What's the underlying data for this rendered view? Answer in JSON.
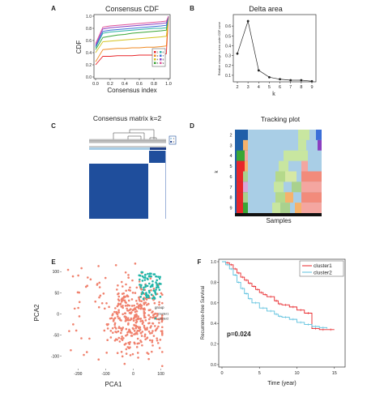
{
  "panels": {
    "a": {
      "letter": "A",
      "title": "Consensus CDF",
      "xlabel": "Consensus index",
      "ylabel": "CDF",
      "xticks": [
        "0.0",
        "0.2",
        "0.4",
        "0.6",
        "0.8",
        "1.0"
      ],
      "yticks": [
        "0.0",
        "0.2",
        "0.4",
        "0.6",
        "0.8",
        "1.0"
      ],
      "legend_labels": [
        "2",
        "3",
        "4",
        "5",
        "6",
        "7",
        "8",
        "9"
      ]
    },
    "b": {
      "letter": "B",
      "title": "Delta area",
      "xlabel": "k",
      "ylabel": "Relative change in area under CDF curve",
      "xticks": [
        "2",
        "3",
        "4",
        "5",
        "6",
        "7",
        "8",
        "9"
      ],
      "yticks": [
        "0.1",
        "0.2",
        "0.3",
        "0.4",
        "0.5",
        "0.6"
      ]
    },
    "c": {
      "letter": "C",
      "title": "Consensus matrix k=2",
      "legend_labels": [
        "1",
        "2"
      ]
    },
    "d": {
      "letter": "D",
      "title": "Tracking plot",
      "xlabel": "Samples",
      "ylabel": "k",
      "yticks": [
        "2",
        "3",
        "4",
        "5",
        "6",
        "7",
        "8",
        "9"
      ]
    },
    "e": {
      "letter": "E",
      "xlabel": "PCA1",
      "ylabel": "PCA2",
      "xticks": [
        "-200",
        "-100",
        "0",
        "100"
      ],
      "yticks": [
        "100",
        "50",
        "0",
        "-50",
        "-100"
      ],
      "legend_title": "group",
      "legend_labels": [
        "cluster1",
        "cluster2"
      ]
    },
    "f": {
      "letter": "F",
      "xlabel": "Time (year)",
      "ylabel": "Recurrence-free Survival",
      "xticks": [
        "0",
        "5",
        "10",
        "15"
      ],
      "yticks": [
        "0.0",
        "0.2",
        "0.4",
        "0.6",
        "0.8",
        "1.0"
      ],
      "legend_labels": [
        "cluster1",
        "cluster2"
      ],
      "annotation": "p=0.024"
    }
  },
  "colors": {
    "red": "#e8262a",
    "cyan": "#5bc0de",
    "navy": "#1f4e9c",
    "light_blue": "#a8cde6",
    "salmon": "#f0826e",
    "teal": "#21b5a8"
  },
  "chart_data": [
    {
      "panel": "A",
      "type": "line",
      "title": "Consensus CDF",
      "xlabel": "Consensus index",
      "ylabel": "CDF",
      "xlim": [
        0,
        1
      ],
      "ylim": [
        0,
        1
      ],
      "x": [
        0,
        0.1,
        0.2,
        0.3,
        0.4,
        0.5,
        0.6,
        0.7,
        0.8,
        0.9,
        0.97,
        1.0
      ],
      "series": [
        {
          "name": "2",
          "color": "#e8262a",
          "values": [
            0.2,
            0.34,
            0.34,
            0.35,
            0.35,
            0.35,
            0.36,
            0.36,
            0.36,
            0.37,
            0.38,
            1.0
          ]
        },
        {
          "name": "3",
          "color": "#f08a24",
          "values": [
            0.25,
            0.45,
            0.46,
            0.47,
            0.47,
            0.48,
            0.48,
            0.49,
            0.49,
            0.5,
            0.51,
            1.0
          ]
        },
        {
          "name": "4",
          "color": "#d4c31f",
          "values": [
            0.4,
            0.58,
            0.59,
            0.6,
            0.61,
            0.62,
            0.63,
            0.64,
            0.65,
            0.66,
            0.67,
            1.0
          ]
        },
        {
          "name": "5",
          "color": "#3aa635",
          "values": [
            0.45,
            0.65,
            0.67,
            0.69,
            0.7,
            0.72,
            0.73,
            0.74,
            0.75,
            0.76,
            0.77,
            1.0
          ]
        },
        {
          "name": "6",
          "color": "#2bb3a6",
          "values": [
            0.48,
            0.72,
            0.74,
            0.75,
            0.76,
            0.77,
            0.78,
            0.79,
            0.8,
            0.8,
            0.81,
            1.0
          ]
        },
        {
          "name": "7",
          "color": "#3a6fd8",
          "values": [
            0.5,
            0.75,
            0.77,
            0.78,
            0.79,
            0.8,
            0.81,
            0.82,
            0.83,
            0.84,
            0.85,
            1.0
          ]
        },
        {
          "name": "8",
          "color": "#8a3fc1",
          "values": [
            0.52,
            0.79,
            0.81,
            0.82,
            0.83,
            0.84,
            0.85,
            0.86,
            0.87,
            0.88,
            0.89,
            1.0
          ]
        },
        {
          "name": "9",
          "color": "#e0559a",
          "values": [
            0.55,
            0.82,
            0.84,
            0.85,
            0.86,
            0.87,
            0.88,
            0.89,
            0.9,
            0.91,
            0.92,
            1.0
          ]
        }
      ]
    },
    {
      "panel": "B",
      "type": "line",
      "title": "Delta area",
      "xlabel": "k",
      "ylabel": "Relative change in area under CDF curve",
      "ylim": [
        0.05,
        0.7
      ],
      "x": [
        2,
        3,
        4,
        5,
        6,
        7,
        8,
        9
      ],
      "series": [
        {
          "values": [
            0.32,
            0.65,
            0.15,
            0.08,
            0.06,
            0.05,
            0.05,
            0.04
          ]
        }
      ]
    },
    {
      "panel": "C",
      "type": "heatmap",
      "title": "Consensus matrix k=2",
      "clusters": [
        "1",
        "2"
      ],
      "cluster_fractions": [
        0.85,
        0.15
      ]
    },
    {
      "panel": "D",
      "type": "heatmap",
      "title": "Tracking plot",
      "xlabel": "Samples",
      "ylabel": "k",
      "k": [
        2,
        3,
        4,
        5,
        6,
        7,
        8,
        9
      ]
    },
    {
      "panel": "E",
      "type": "scatter",
      "xlabel": "PCA1",
      "ylabel": "PCA2",
      "xlim": [
        -260,
        110
      ],
      "ylim": [
        -130,
        135
      ],
      "series": [
        {
          "name": "cluster1",
          "color": "#f0826e",
          "n_points": 420
        },
        {
          "name": "cluster2",
          "color": "#21b5a8",
          "n_points": 80
        }
      ]
    },
    {
      "panel": "F",
      "type": "line",
      "xlabel": "Time (year)",
      "ylabel": "Recurrence-free Survival",
      "xlim": [
        0,
        16
      ],
      "ylim": [
        0,
        1
      ],
      "series": [
        {
          "name": "cluster1",
          "color": "#e8262a",
          "x": [
            0,
            0.5,
            1,
            1.5,
            2,
            2.5,
            3,
            3.5,
            4,
            4.5,
            5,
            5.5,
            6,
            7,
            7.5,
            8,
            9,
            10,
            11,
            12,
            13,
            14,
            15
          ],
          "values": [
            1.0,
            0.99,
            0.97,
            0.93,
            0.89,
            0.85,
            0.82,
            0.79,
            0.76,
            0.73,
            0.7,
            0.68,
            0.66,
            0.62,
            0.59,
            0.58,
            0.56,
            0.53,
            0.5,
            0.35,
            0.34,
            0.34,
            0.34
          ]
        },
        {
          "name": "cluster2",
          "color": "#5bc0de",
          "x": [
            0,
            0.5,
            1,
            1.5,
            2,
            2.5,
            3,
            3.5,
            4,
            5,
            6,
            7,
            7.5,
            8,
            9,
            10,
            11,
            12,
            13,
            14
          ],
          "values": [
            1.0,
            0.97,
            0.93,
            0.87,
            0.8,
            0.74,
            0.69,
            0.64,
            0.6,
            0.55,
            0.52,
            0.49,
            0.47,
            0.46,
            0.44,
            0.41,
            0.39,
            0.37,
            0.36,
            0.35
          ]
        }
      ]
    }
  ]
}
